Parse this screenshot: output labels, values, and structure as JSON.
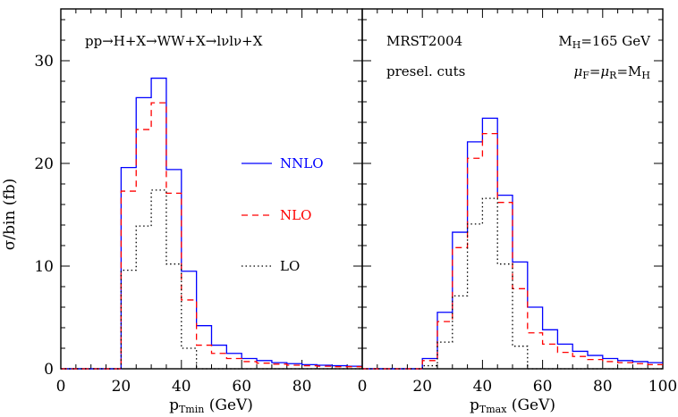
{
  "chart_data": [
    {
      "type": "histogram",
      "panel": "left",
      "xlabel": {
        "main": "p",
        "sub": "Tmin",
        "unit": " (GeV)"
      },
      "ylabel": "σ/bin (fb)",
      "xlim": [
        0,
        100
      ],
      "ylim": [
        0,
        35
      ],
      "xticks": [
        0,
        20,
        40,
        60,
        80
      ],
      "yticks": [
        0,
        10,
        20,
        30
      ],
      "bin_edges": [
        0,
        5,
        10,
        15,
        20,
        25,
        30,
        35,
        40,
        45,
        50,
        55,
        60,
        65,
        70,
        75,
        80,
        85,
        90,
        95,
        100
      ],
      "series": [
        {
          "name": "NNLO",
          "color": "#0000ff",
          "dash": "solid",
          "values": [
            0,
            0,
            0,
            0,
            19.6,
            26.4,
            28.3,
            19.4,
            9.5,
            4.2,
            2.3,
            1.5,
            1.0,
            0.8,
            0.6,
            0.5,
            0.4,
            0.35,
            0.3,
            0.25
          ]
        },
        {
          "name": "NLO",
          "color": "#ff0000",
          "dash": "dashed",
          "values": [
            0,
            0,
            0,
            0,
            17.3,
            23.3,
            25.9,
            17.1,
            6.7,
            2.3,
            1.5,
            1.0,
            0.7,
            0.55,
            0.45,
            0.35,
            0.3,
            0.25,
            0.2,
            0.2
          ]
        },
        {
          "name": "LO",
          "color": "#000000",
          "dash": "dotted",
          "values": [
            0,
            0,
            0,
            0,
            9.6,
            13.9,
            17.4,
            10.2,
            2.0,
            0,
            0,
            0,
            0,
            0,
            0,
            0,
            0,
            0,
            0,
            0
          ]
        }
      ],
      "annotations": [
        "pp→H+X→WW+X→lνlν+X"
      ],
      "legend": {
        "placement": "center-right",
        "entries": [
          "NNLO",
          "NLO",
          "LO"
        ]
      }
    },
    {
      "type": "histogram",
      "panel": "right",
      "xlabel": {
        "main": "p",
        "sub": "Tmax",
        "unit": " (GeV)"
      },
      "xlim": [
        0,
        100
      ],
      "ylim": [
        0,
        35
      ],
      "xticks": [
        0,
        20,
        40,
        60,
        80,
        100
      ],
      "bin_edges": [
        0,
        5,
        10,
        15,
        20,
        25,
        30,
        35,
        40,
        45,
        50,
        55,
        60,
        65,
        70,
        75,
        80,
        85,
        90,
        95,
        100
      ],
      "series": [
        {
          "name": "NNLO",
          "color": "#0000ff",
          "dash": "solid",
          "values": [
            0,
            0,
            0,
            0,
            1.0,
            5.5,
            13.3,
            22.1,
            24.4,
            16.9,
            10.4,
            6.0,
            3.8,
            2.4,
            1.7,
            1.3,
            1.0,
            0.8,
            0.7,
            0.6
          ]
        },
        {
          "name": "NLO",
          "color": "#ff0000",
          "dash": "dashed",
          "values": [
            0,
            0,
            0,
            0,
            0.8,
            4.6,
            11.8,
            20.5,
            22.9,
            16.2,
            7.8,
            3.5,
            2.4,
            1.6,
            1.2,
            0.9,
            0.7,
            0.6,
            0.5,
            0.4
          ]
        },
        {
          "name": "LO",
          "color": "#000000",
          "dash": "dotted",
          "values": [
            0,
            0,
            0,
            0,
            0.3,
            2.6,
            7.1,
            14.1,
            16.6,
            10.2,
            2.2,
            0,
            0,
            0,
            0,
            0,
            0,
            0,
            0,
            0
          ]
        }
      ],
      "annotations": [
        "MRST2004",
        "presel. cuts"
      ],
      "mh_label": {
        "main": "M",
        "sub": "H",
        "rest": "=165 GeV"
      },
      "mu_label": [
        {
          "t": "μ",
          "s": false
        },
        {
          "t": "F",
          "s": true
        },
        {
          "t": "=μ",
          "s": false
        },
        {
          "t": "R",
          "s": true
        },
        {
          "t": "=M",
          "s": false
        },
        {
          "t": "H",
          "s": true
        }
      ]
    }
  ]
}
